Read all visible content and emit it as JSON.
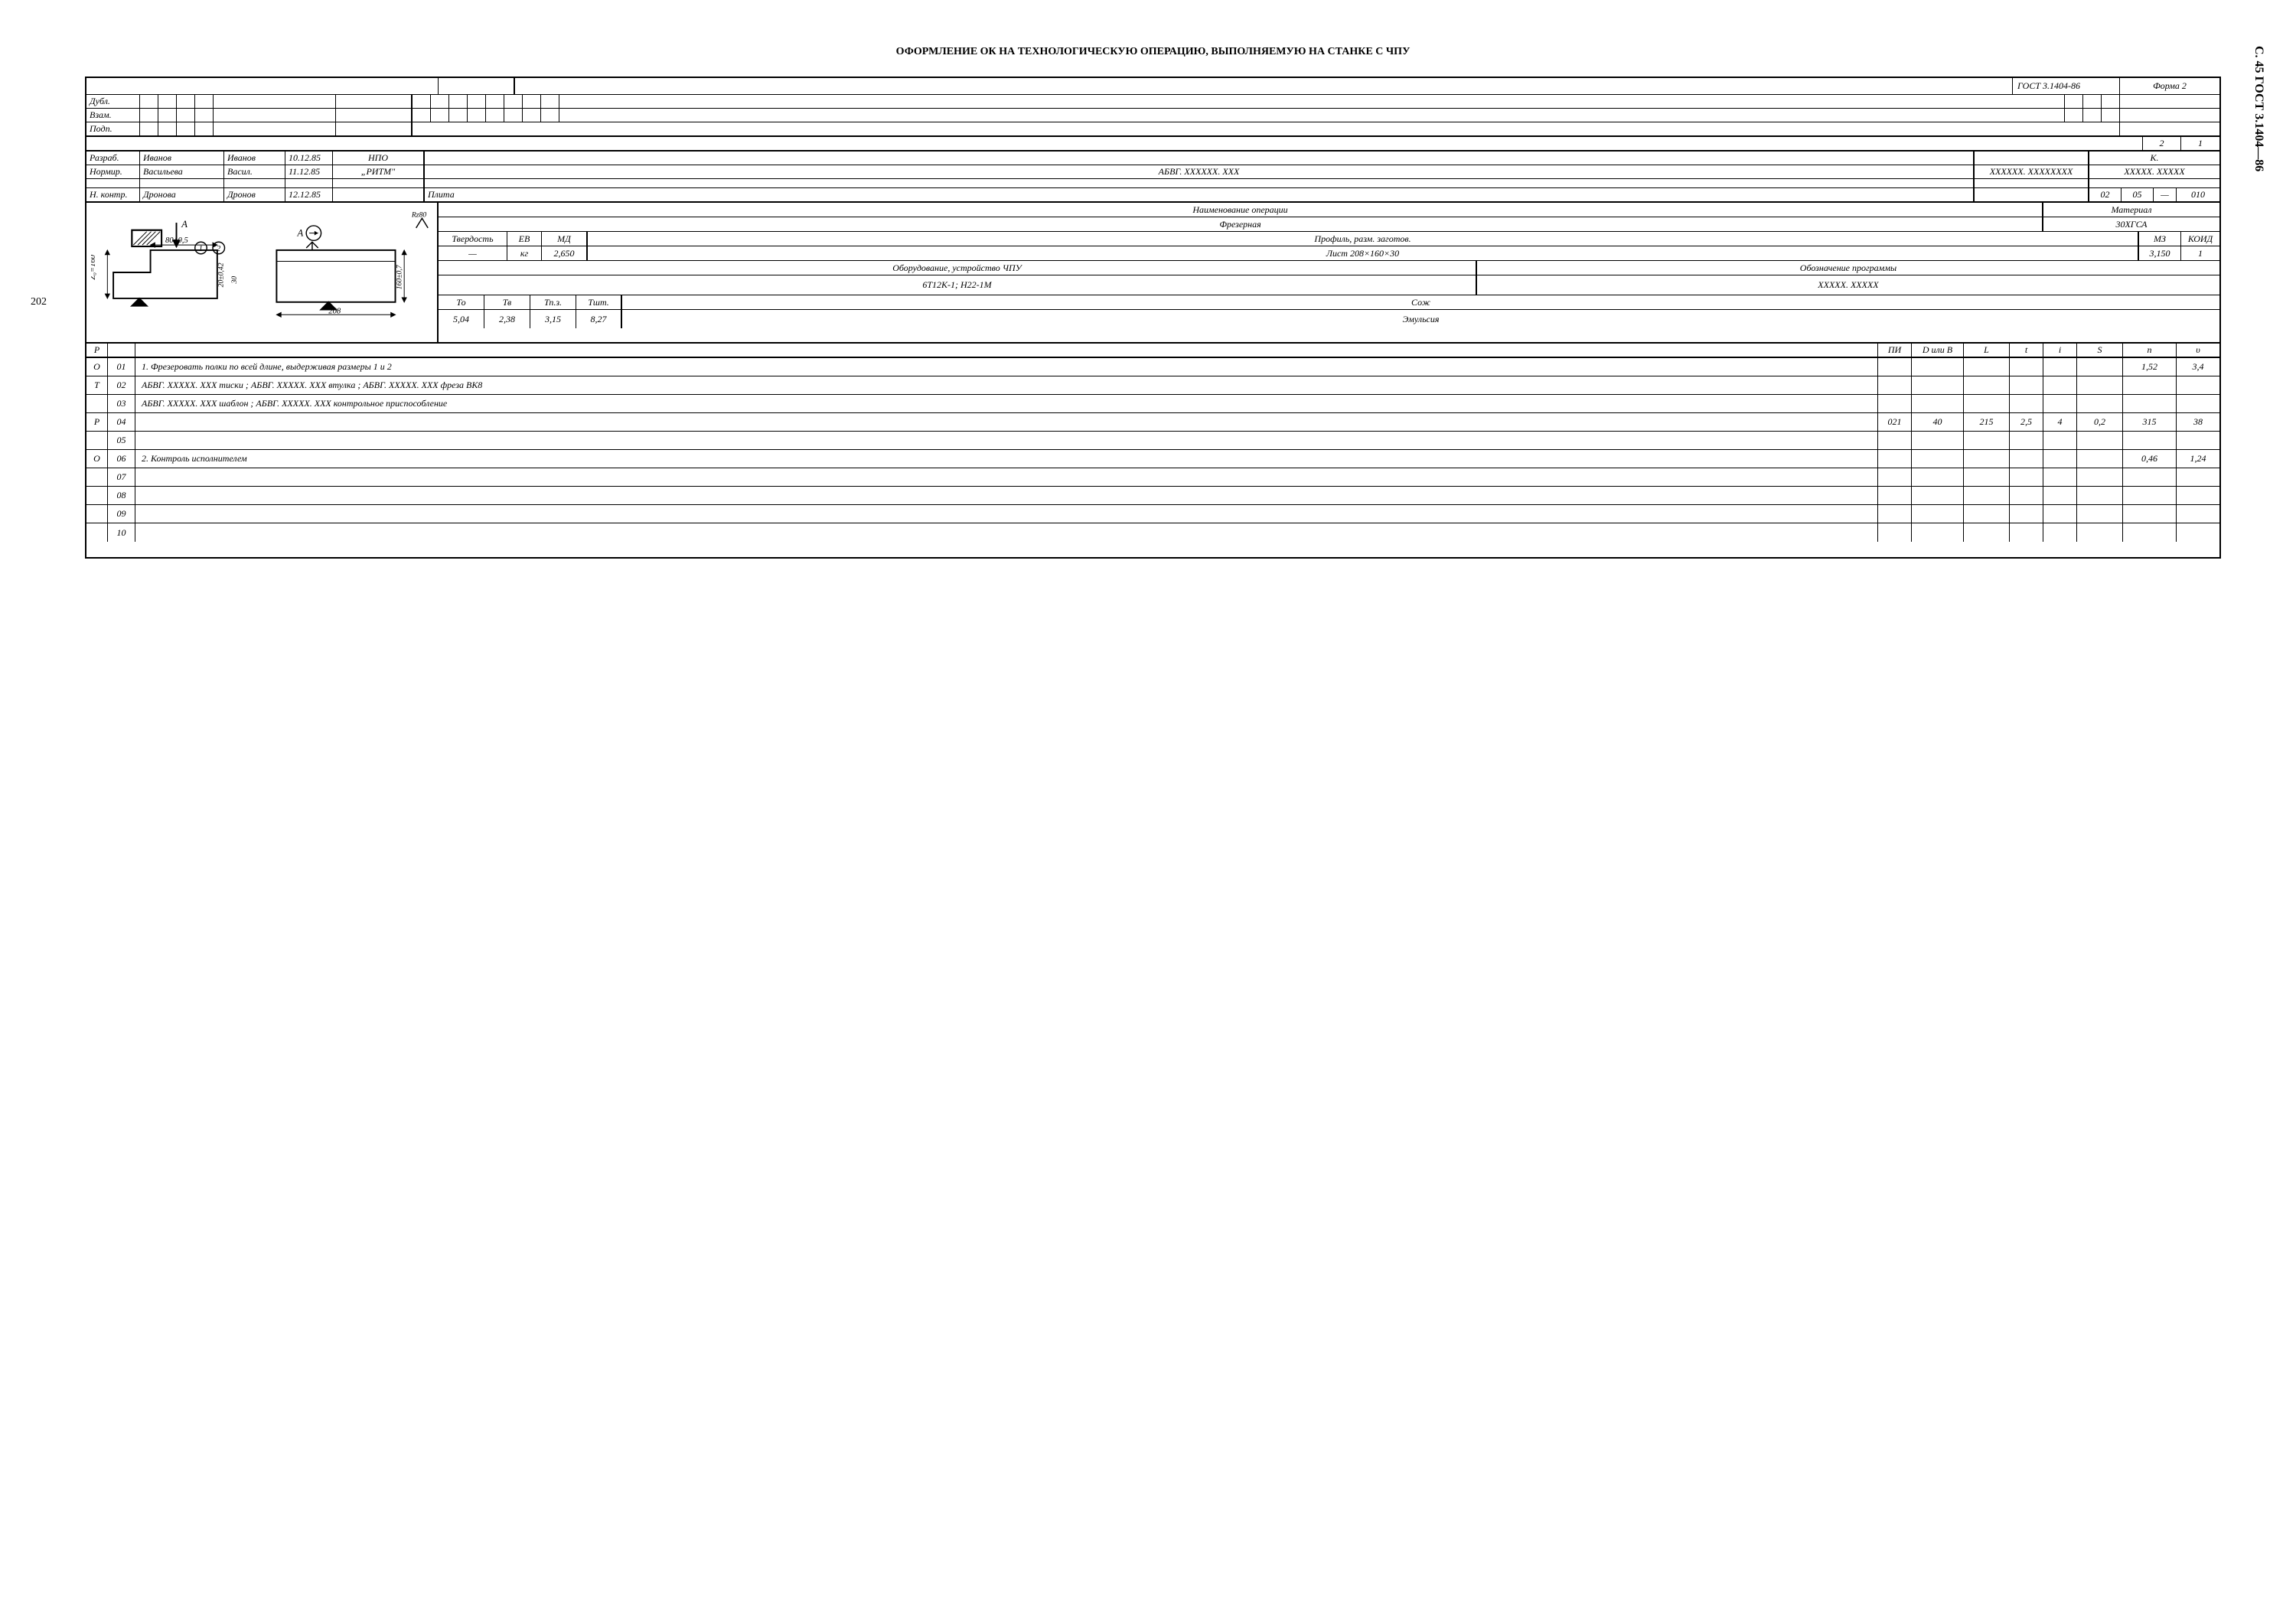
{
  "page_number_left": "202",
  "side_label": "С. 45 ГОСТ 3.1404—86",
  "title": "ОФОРМЛЕНИЕ ОК НА ТЕХНОЛОГИЧЕСКУЮ ОПЕРАЦИЮ, ВЫПОЛНЯЕМУЮ НА СТАНКЕ С ЧПУ",
  "header": {
    "gost": "ГОСТ 3.1404-86",
    "form": "Форма 2",
    "dubl": "Дубл.",
    "vzam": "Взам.",
    "podp": "Подп.",
    "page_num_box_a": "2",
    "page_num_box_b": "1"
  },
  "signatures": {
    "razrab_lbl": "Разраб.",
    "razrab_name": "Иванов",
    "razrab_sign": "Иванов",
    "razrab_date": "10.12.85",
    "normir_lbl": "Нормир.",
    "normir_name": "Васильева",
    "normir_sign": "Васил.",
    "normir_date": "11.12.85",
    "nkontr_lbl": "Н. контр.",
    "nkontr_name": "Дронова",
    "nkontr_sign": "Дронов",
    "nkontr_date": "12.12.85"
  },
  "org": {
    "line1": "НПО",
    "line2": "„РИТМ\""
  },
  "codes": {
    "main": "АБВГ. ХХХХХХ. ХХХ",
    "aux": "ХХХХХХ. ХХХХХХХХ",
    "k_lbl": "К.",
    "k_val": "ХХХХХ. ХХХХХ",
    "name": "Плита",
    "seq_a": "02",
    "seq_b": "05",
    "seq_dash": "—",
    "seq_c": "010"
  },
  "drawing": {
    "rz": "Rz80",
    "dim_80": "80±0,5",
    "dim_20": "20±0,42",
    "dim_30": "30",
    "dim_160v": "160±0,7",
    "dim_z": "Z₀=160",
    "dim_208": "208",
    "a_arrow": "А",
    "circ1": "1",
    "circ2": "2"
  },
  "params": {
    "op_name_lbl": "Наименование операции",
    "op_name": "Фрезерная",
    "material_lbl": "Материал",
    "material": "30ХГСА",
    "tverdost_lbl": "Твердость",
    "tverdost_val": "—",
    "ev_lbl": "ЕВ",
    "ev_val": "кг",
    "md_lbl": "МД",
    "md_val": "2,650",
    "profil_lbl": "Профиль, разм. заготов.",
    "profil_val": "Лист 208×160×30",
    "mz_lbl": "МЗ",
    "mz_val": "3,150",
    "koid_lbl": "КОИД",
    "koid_val": "1",
    "equip_lbl": "Оборудование, устройство ЧПУ",
    "equip_val": "6Т12К-1;   Н22-1М",
    "prog_lbl": "Обозначение программы",
    "prog_val": "ХХХХХ. ХХХХХ",
    "to_lbl": "То",
    "tv_lbl": "Тв",
    "tpz_lbl": "Тп.з.",
    "tsht_lbl": "Тшт.",
    "to": "5,04",
    "tv": "2,38",
    "tpz": "3,15",
    "tsht": "8,27",
    "sozh_lbl": "Сож",
    "sozh_val": "Эмульсия"
  },
  "ops_header": {
    "r": "Р",
    "pi": "ПИ",
    "db": "D или В",
    "l": "L",
    "t": "t",
    "i": "i",
    "s": "S",
    "n": "n",
    "u": "υ"
  },
  "ops": [
    {
      "code": "О",
      "num": "01",
      "text": "1.  Фрезеровать  полки  по  всей  длине,  выдерживая  размеры  1 и 2",
      "n": "1,52",
      "u": "3,4"
    },
    {
      "code": "Т",
      "num": "02",
      "text": "АБВГ. ХХХХХ. ХХХ  тиски ;   АБВГ. ХХХХХ. ХХХ  втулка ;   АБВГ. ХХХХХ. ХХХ  фреза ВК8"
    },
    {
      "code": "",
      "num": "03",
      "text": "АБВГ. ХХХХХ. ХХХ  шаблон ;   АБВГ. ХХХХХ. ХХХ  контрольное приспособление"
    },
    {
      "code": "Р",
      "num": "04",
      "text": "",
      "pi": "021",
      "db": "40",
      "l": "215",
      "t": "2,5",
      "i": "4",
      "s": "0,2",
      "n": "315",
      "u": "38"
    },
    {
      "code": "",
      "num": "05",
      "text": ""
    },
    {
      "code": "О",
      "num": "06",
      "text": "2.  Контроль  исполнителем",
      "n": "0,46",
      "u": "1,24"
    },
    {
      "code": "",
      "num": "07",
      "text": ""
    },
    {
      "code": "",
      "num": "08",
      "text": ""
    },
    {
      "code": "",
      "num": "09",
      "text": ""
    },
    {
      "code": "",
      "num": "10",
      "text": ""
    }
  ]
}
